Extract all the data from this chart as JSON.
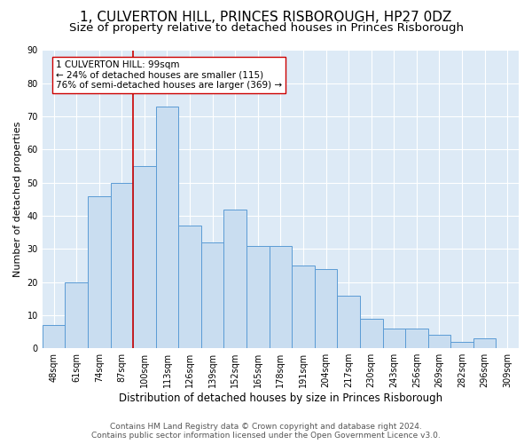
{
  "title": "1, CULVERTON HILL, PRINCES RISBOROUGH, HP27 0DZ",
  "subtitle": "Size of property relative to detached houses in Princes Risborough",
  "xlabel": "Distribution of detached houses by size in Princes Risborough",
  "ylabel": "Number of detached properties",
  "categories": [
    "48sqm",
    "61sqm",
    "74sqm",
    "87sqm",
    "100sqm",
    "113sqm",
    "126sqm",
    "139sqm",
    "152sqm",
    "165sqm",
    "178sqm",
    "191sqm",
    "204sqm",
    "217sqm",
    "230sqm",
    "243sqm",
    "256sqm",
    "269sqm",
    "282sqm",
    "296sqm",
    "309sqm"
  ],
  "values": [
    7,
    20,
    46,
    50,
    55,
    73,
    37,
    32,
    42,
    31,
    31,
    25,
    24,
    16,
    9,
    6,
    6,
    4,
    2,
    3,
    0
  ],
  "bar_color": "#c9ddf0",
  "bar_edge_color": "#5b9bd5",
  "vline_color": "#cc0000",
  "annotation_text": "1 CULVERTON HILL: 99sqm\n← 24% of detached houses are smaller (115)\n76% of semi-detached houses are larger (369) →",
  "annotation_box_color": "#ffffff",
  "annotation_box_edge": "#cc0000",
  "ylim": [
    0,
    90
  ],
  "yticks": [
    0,
    10,
    20,
    30,
    40,
    50,
    60,
    70,
    80,
    90
  ],
  "background_color": "#ddeaf6",
  "footer_line1": "Contains HM Land Registry data © Crown copyright and database right 2024.",
  "footer_line2": "Contains public sector information licensed under the Open Government Licence v3.0.",
  "title_fontsize": 11,
  "subtitle_fontsize": 9.5,
  "xlabel_fontsize": 8.5,
  "ylabel_fontsize": 8,
  "tick_fontsize": 7,
  "footer_fontsize": 6.5,
  "annotation_fontsize": 7.5
}
